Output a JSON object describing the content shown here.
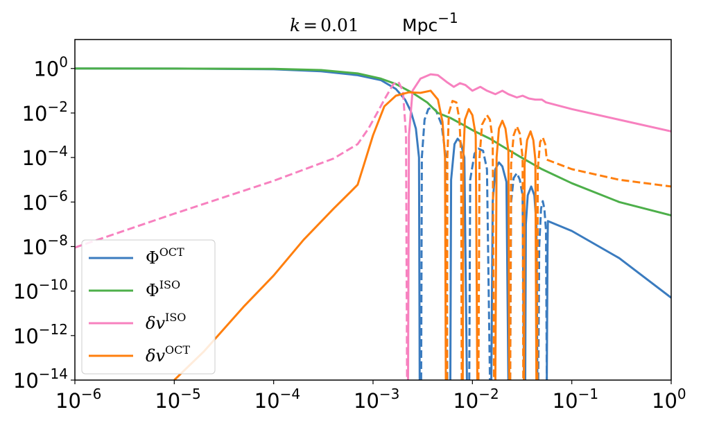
{
  "chart_data": {
    "type": "line",
    "title": {
      "text": "k = 0.01",
      "unit": "Mpc",
      "unit_exponent": "−1"
    },
    "xlabel": "",
    "ylabel": "",
    "x_scale": "log",
    "y_scale": "log",
    "xlim": [
      1e-06,
      1
    ],
    "ylim": [
      1e-14,
      20
    ],
    "x_ticks": [
      {
        "value": 1e-06,
        "base": "10",
        "exp": "−6"
      },
      {
        "value": 1e-05,
        "base": "10",
        "exp": "−5"
      },
      {
        "value": 0.0001,
        "base": "10",
        "exp": "−4"
      },
      {
        "value": 0.001,
        "base": "10",
        "exp": "−3"
      },
      {
        "value": 0.01,
        "base": "10",
        "exp": "−2"
      },
      {
        "value": 0.1,
        "base": "10",
        "exp": "−1"
      },
      {
        "value": 1,
        "base": "10",
        "exp": "0"
      }
    ],
    "y_ticks": [
      {
        "value": 1,
        "base": "10",
        "exp": "0"
      },
      {
        "value": 0.01,
        "base": "10",
        "exp": "−2"
      },
      {
        "value": 0.0001,
        "base": "10",
        "exp": "−4"
      },
      {
        "value": 1e-06,
        "base": "10",
        "exp": "−6"
      },
      {
        "value": 1e-08,
        "base": "10",
        "exp": "−8"
      },
      {
        "value": 1e-10,
        "base": "10",
        "exp": "−10"
      },
      {
        "value": 1e-12,
        "base": "10",
        "exp": "−12"
      },
      {
        "value": 1e-14,
        "base": "10",
        "exp": "−14"
      }
    ],
    "grid": false,
    "legend_position": "lower-left",
    "line_style_note": "solid = positive values, dashed = negative values",
    "series": [
      {
        "name": "Φ",
        "sup": "OCT",
        "color": "#3a7bbf",
        "segments": [
          {
            "style": "solid",
            "points": [
              [
                1e-06,
                1.0
              ],
              [
                1e-05,
                0.99
              ],
              [
                0.0001,
                0.92
              ],
              [
                0.0003,
                0.75
              ],
              [
                0.0007,
                0.5
              ],
              [
                0.0012,
                0.3
              ],
              [
                0.0017,
                0.12
              ],
              [
                0.0021,
                0.04
              ],
              [
                0.0024,
                0.012
              ],
              [
                0.0027,
                0.002
              ],
              [
                0.0029,
                0.0001
              ],
              [
                0.00295,
                1e-14
              ]
            ]
          },
          {
            "style": "dashed",
            "points": [
              [
                0.00305,
                1e-14
              ],
              [
                0.0031,
                0.0001
              ],
              [
                0.0033,
                0.005
              ],
              [
                0.0036,
                0.015
              ],
              [
                0.0039,
                0.018
              ],
              [
                0.0043,
                0.013
              ],
              [
                0.0049,
                0.003
              ],
              [
                0.0054,
                0.0001
              ],
              [
                0.0056,
                1e-14
              ]
            ]
          },
          {
            "style": "solid",
            "points": [
              [
                0.006,
                1e-14
              ],
              [
                0.0061,
                1e-05
              ],
              [
                0.0066,
                0.0004
              ],
              [
                0.0071,
                0.0007
              ],
              [
                0.0076,
                0.0005
              ],
              [
                0.0083,
                0.0001
              ],
              [
                0.0088,
                1e-14
              ]
            ]
          },
          {
            "style": "dashed",
            "points": [
              [
                0.0093,
                1e-14
              ],
              [
                0.0095,
                1e-05
              ],
              [
                0.0105,
                0.00015
              ],
              [
                0.0115,
                0.00025
              ],
              [
                0.0128,
                0.0002
              ],
              [
                0.014,
                3e-05
              ],
              [
                0.015,
                1e-14
              ]
            ]
          },
          {
            "style": "solid",
            "points": [
              [
                0.0155,
                1e-14
              ],
              [
                0.016,
                1e-06
              ],
              [
                0.017,
                3e-05
              ],
              [
                0.0185,
                6e-05
              ],
              [
                0.02,
                4e-05
              ],
              [
                0.022,
                8e-06
              ],
              [
                0.023,
                1e-14
              ]
            ]
          },
          {
            "style": "dashed",
            "points": [
              [
                0.024,
                1e-14
              ],
              [
                0.0245,
                1e-06
              ],
              [
                0.026,
                1.2e-05
              ],
              [
                0.028,
                2e-05
              ],
              [
                0.03,
                1e-05
              ],
              [
                0.032,
                2e-06
              ],
              [
                0.033,
                1e-14
              ]
            ]
          },
          {
            "style": "solid",
            "points": [
              [
                0.034,
                1e-14
              ],
              [
                0.0345,
                1e-07
              ],
              [
                0.036,
                2e-06
              ],
              [
                0.039,
                5e-06
              ],
              [
                0.042,
                2e-06
              ],
              [
                0.044,
                1e-07
              ],
              [
                0.045,
                1e-14
              ]
            ]
          },
          {
            "style": "dashed",
            "points": [
              [
                0.046,
                1e-14
              ],
              [
                0.047,
                1e-08
              ],
              [
                0.049,
                5e-07
              ],
              [
                0.051,
                1.1e-06
              ],
              [
                0.053,
                5e-07
              ],
              [
                0.055,
                5e-08
              ],
              [
                0.056,
                1e-14
              ]
            ]
          },
          {
            "style": "solid",
            "points": [
              [
                0.056,
                1e-14
              ],
              [
                0.057,
                1e-08
              ],
              [
                0.0575,
                1.4e-07
              ],
              [
                0.1,
                5e-08
              ],
              [
                0.3,
                3e-09
              ],
              [
                1.0,
                5e-11
              ]
            ]
          }
        ]
      },
      {
        "name": "Φ",
        "sup": "ISO",
        "color": "#4daf4a",
        "segments": [
          {
            "style": "solid",
            "points": [
              [
                1e-06,
                1.0
              ],
              [
                1e-05,
                0.99
              ],
              [
                0.0001,
                0.96
              ],
              [
                0.0003,
                0.85
              ],
              [
                0.0007,
                0.6
              ],
              [
                0.0012,
                0.35
              ],
              [
                0.0017,
                0.2
              ],
              [
                0.0025,
                0.08
              ],
              [
                0.0035,
                0.03
              ],
              [
                0.0045,
                0.01
              ],
              [
                0.006,
                0.006
              ],
              [
                0.008,
                0.003
              ],
              [
                0.01,
                0.0017
              ],
              [
                0.015,
                0.0007
              ],
              [
                0.02,
                0.00032
              ],
              [
                0.03,
                0.00011
              ],
              [
                0.05,
                3e-05
              ],
              [
                0.1,
                7e-06
              ],
              [
                0.3,
                1e-06
              ],
              [
                1.0,
                2.5e-07
              ]
            ]
          }
        ]
      },
      {
        "name": "δv",
        "sup": "ISO",
        "color": "#f781bf",
        "segments": [
          {
            "style": "dashed",
            "points": [
              [
                1e-06,
                9e-09
              ],
              [
                1e-05,
                3e-07
              ],
              [
                0.0001,
                9e-06
              ],
              [
                0.0004,
                9e-05
              ],
              [
                0.0007,
                0.0004
              ],
              [
                0.0009,
                0.002
              ],
              [
                0.0011,
                0.01
              ],
              [
                0.0013,
                0.04
              ],
              [
                0.0016,
                0.2
              ],
              [
                0.0018,
                0.25
              ],
              [
                0.002,
                0.1
              ],
              [
                0.00215,
                0.001
              ],
              [
                0.0022,
                1e-14
              ]
            ]
          },
          {
            "style": "solid",
            "points": [
              [
                0.00225,
                1e-14
              ],
              [
                0.0023,
                0.001
              ],
              [
                0.0025,
                0.1
              ],
              [
                0.003,
                0.35
              ],
              [
                0.0038,
                0.55
              ],
              [
                0.0045,
                0.5
              ],
              [
                0.0055,
                0.25
              ],
              [
                0.0065,
                0.15
              ],
              [
                0.0075,
                0.22
              ],
              [
                0.0085,
                0.18
              ],
              [
                0.01,
                0.1
              ],
              [
                0.012,
                0.15
              ],
              [
                0.014,
                0.1
              ],
              [
                0.017,
                0.07
              ],
              [
                0.02,
                0.1
              ],
              [
                0.023,
                0.07
              ],
              [
                0.028,
                0.05
              ],
              [
                0.032,
                0.06
              ],
              [
                0.037,
                0.045
              ],
              [
                0.043,
                0.04
              ],
              [
                0.05,
                0.04
              ],
              [
                0.055,
                0.03
              ],
              [
                0.1,
                0.015
              ],
              [
                0.3,
                0.005
              ],
              [
                1.0,
                0.0015
              ]
            ]
          }
        ]
      },
      {
        "name": "δv",
        "sup": "OCT",
        "color": "#ff7f0e",
        "segments": [
          {
            "style": "solid",
            "points": [
              [
                1e-05,
                1e-14
              ],
              [
                2e-05,
                2e-13
              ],
              [
                5e-05,
                2e-11
              ],
              [
                0.0001,
                5e-10
              ],
              [
                0.0002,
                2e-08
              ],
              [
                0.0004,
                5e-07
              ],
              [
                0.0006,
                3e-06
              ],
              [
                0.0007,
                6e-06
              ],
              [
                0.0008,
                4e-05
              ],
              [
                0.001,
                0.001
              ],
              [
                0.0013,
                0.02
              ],
              [
                0.0017,
                0.06
              ],
              [
                0.0023,
                0.085
              ],
              [
                0.003,
                0.08
              ],
              [
                0.0038,
                0.1
              ],
              [
                0.0045,
                0.04
              ],
              [
                0.005,
                0.004
              ],
              [
                0.0053,
                0.0001
              ],
              [
                0.0054,
                1e-14
              ]
            ]
          },
          {
            "style": "dashed",
            "points": [
              [
                0.00555,
                1e-14
              ],
              [
                0.0056,
                0.0001
              ],
              [
                0.0058,
                0.01
              ],
              [
                0.0063,
                0.035
              ],
              [
                0.0069,
                0.03
              ],
              [
                0.0074,
                0.005
              ],
              [
                0.0077,
                0.0001
              ],
              [
                0.0078,
                1e-14
              ]
            ]
          },
          {
            "style": "solid",
            "points": [
              [
                0.008,
                1e-14
              ],
              [
                0.0081,
                0.0001
              ],
              [
                0.0084,
                0.005
              ],
              [
                0.0092,
                0.015
              ],
              [
                0.01,
                0.008
              ],
              [
                0.0108,
                0.001
              ],
              [
                0.0112,
                1e-14
              ]
            ]
          },
          {
            "style": "dashed",
            "points": [
              [
                0.0115,
                1e-14
              ],
              [
                0.0118,
                0.0001
              ],
              [
                0.0125,
                0.003
              ],
              [
                0.014,
                0.008
              ],
              [
                0.015,
                0.005
              ],
              [
                0.016,
                0.0006
              ],
              [
                0.0165,
                1e-14
              ]
            ]
          },
          {
            "style": "solid",
            "points": [
              [
                0.017,
                1e-14
              ],
              [
                0.0175,
                0.0001
              ],
              [
                0.0185,
                0.002
              ],
              [
                0.02,
                0.0045
              ],
              [
                0.0215,
                0.002
              ],
              [
                0.023,
                0.0002
              ],
              [
                0.0235,
                1e-14
              ]
            ]
          },
          {
            "style": "dashed",
            "points": [
              [
                0.024,
                1e-14
              ],
              [
                0.0245,
                5e-05
              ],
              [
                0.026,
                0.001
              ],
              [
                0.028,
                0.0025
              ],
              [
                0.03,
                0.0012
              ],
              [
                0.032,
                0.0001
              ],
              [
                0.0325,
                1e-14
              ]
            ]
          },
          {
            "style": "solid",
            "points": [
              [
                0.033,
                1e-14
              ],
              [
                0.0335,
                5e-05
              ],
              [
                0.0355,
                0.0006
              ],
              [
                0.0385,
                0.0015
              ],
              [
                0.041,
                0.0006
              ],
              [
                0.043,
                8e-05
              ],
              [
                0.044,
                1e-14
              ]
            ]
          },
          {
            "style": "dashed",
            "points": [
              [
                0.045,
                1e-14
              ],
              [
                0.0455,
                3e-05
              ],
              [
                0.048,
                0.0005
              ],
              [
                0.051,
                0.0008
              ],
              [
                0.054,
                0.0004
              ],
              [
                0.056,
                8e-05
              ],
              [
                0.1,
                3e-05
              ],
              [
                0.3,
                1e-05
              ],
              [
                1.0,
                5e-06
              ]
            ]
          }
        ]
      }
    ]
  }
}
